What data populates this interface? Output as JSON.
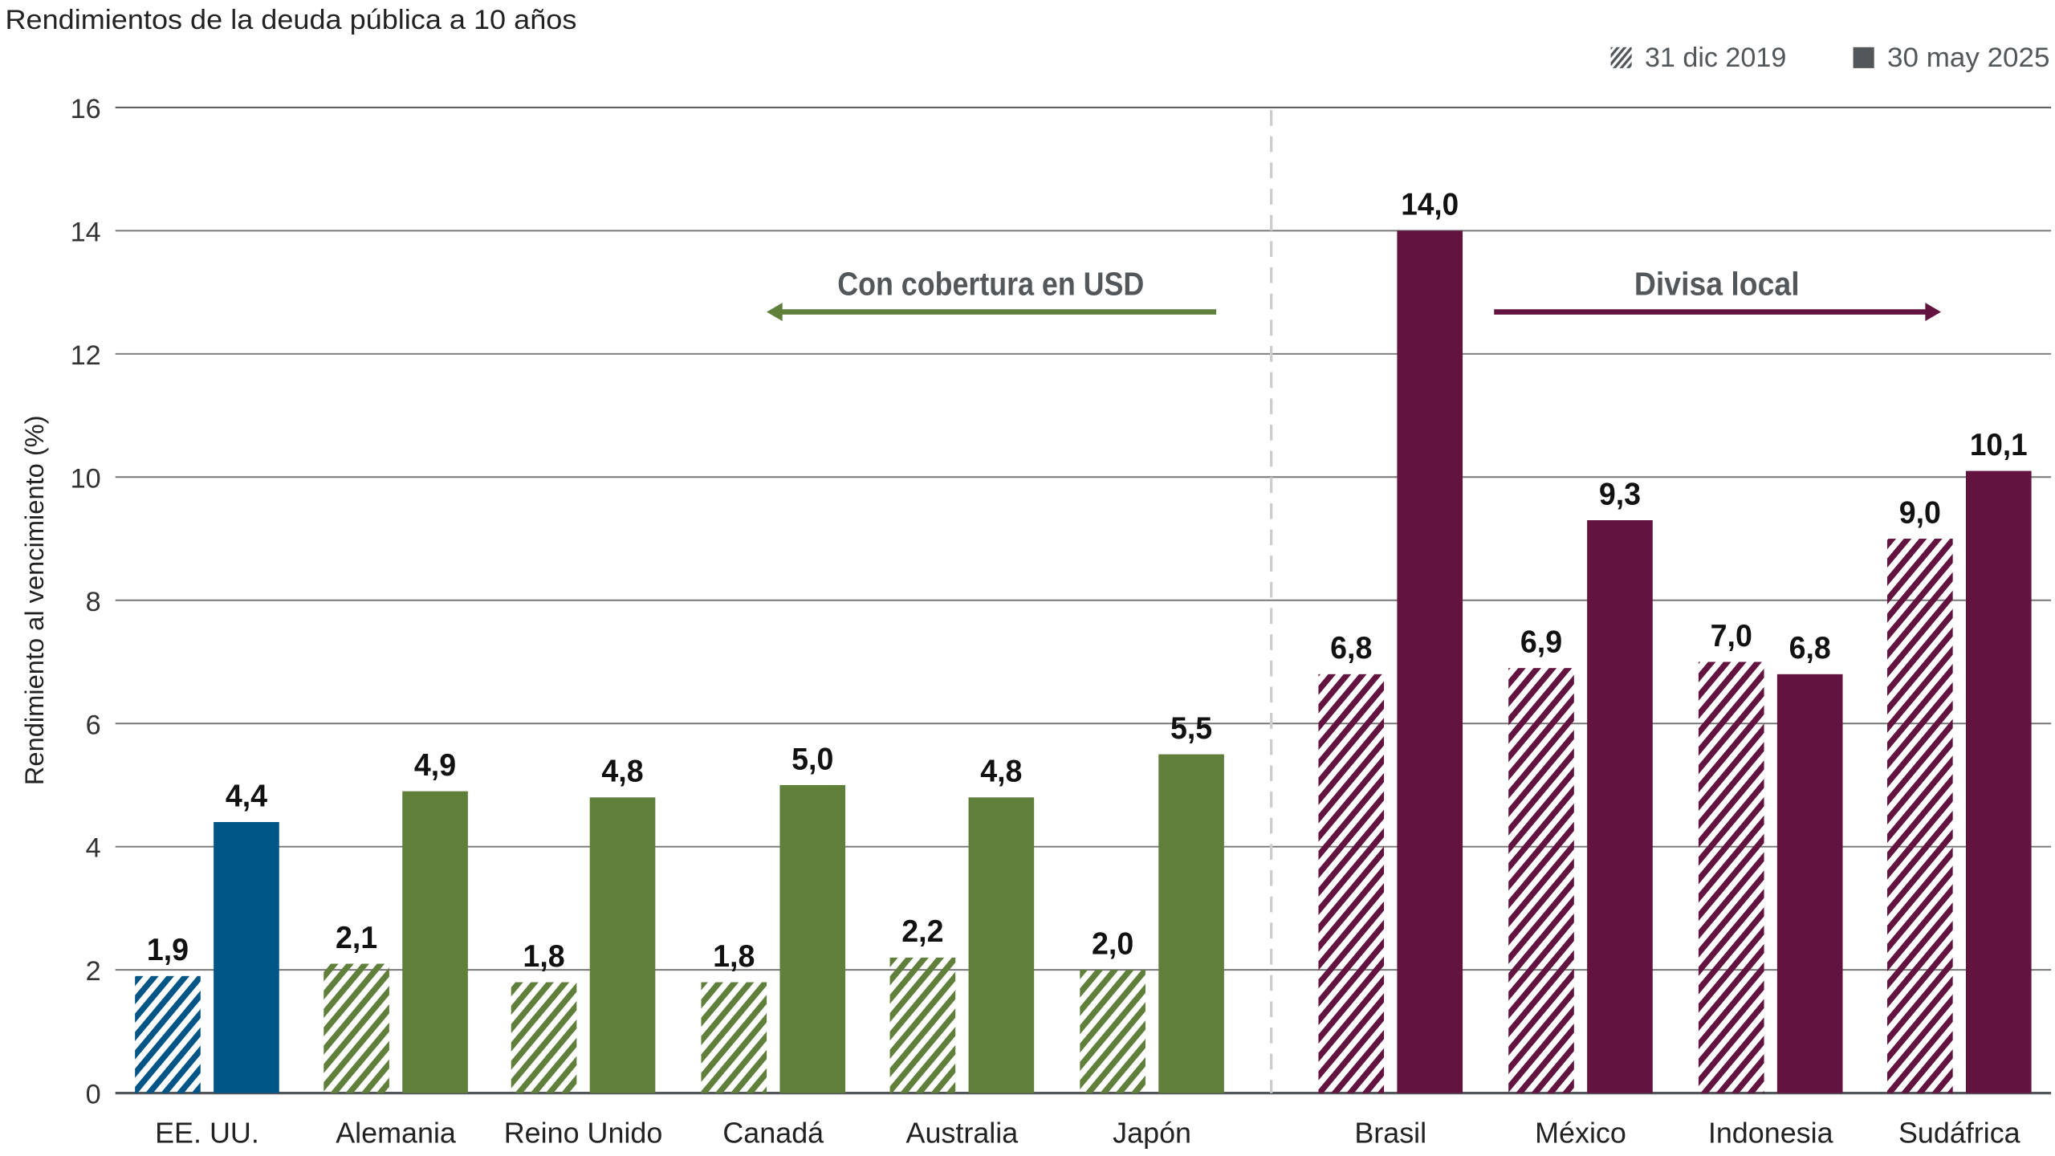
{
  "chart_data": {
    "type": "bar",
    "title": "Rendimientos de la deuda pública a 10 años",
    "ylabel": "Rendimiento al vencimiento (%)",
    "xlabel": "",
    "ylim": [
      0,
      16
    ],
    "yticks": [
      0,
      2,
      4,
      6,
      8,
      10,
      12,
      14,
      16
    ],
    "grid": true,
    "legend_placement": "top-right",
    "categories": [
      "EE. UU.",
      "Alemania",
      "Reino Unido",
      "Canadá",
      "Australia",
      "Japón",
      "Brasil",
      "México",
      "Indonesia",
      "Sudáfrica"
    ],
    "series": [
      {
        "name": "31 dic 2019",
        "style": "hatched",
        "values": [
          1.9,
          2.1,
          1.8,
          1.8,
          2.2,
          2.0,
          6.8,
          6.9,
          7.0,
          9.0
        ],
        "labels": [
          "1,9",
          "2,1",
          "1,8",
          "1,8",
          "2,2",
          "2,0",
          "6,8",
          "6,9",
          "7,0",
          "9,0"
        ]
      },
      {
        "name": "30 may 2025",
        "style": "solid",
        "values": [
          4.4,
          4.9,
          4.8,
          5.0,
          4.8,
          5.5,
          14.0,
          9.3,
          6.8,
          10.1
        ],
        "labels": [
          "4,4",
          "4,9",
          "4,8",
          "5,0",
          "4,8",
          "5,5",
          "14,0",
          "9,3",
          "6,8",
          "10,1"
        ]
      }
    ],
    "category_colors": [
      "#005587",
      "#607f3a",
      "#607f3a",
      "#607f3a",
      "#607f3a",
      "#607f3a",
      "#621340",
      "#621340",
      "#621340",
      "#621340"
    ],
    "annotations": [
      {
        "text": "Con cobertura en USD",
        "arrow": "left",
        "color": "#607f3a"
      },
      {
        "text": "Divisa local",
        "arrow": "right",
        "color": "#621340"
      }
    ]
  }
}
